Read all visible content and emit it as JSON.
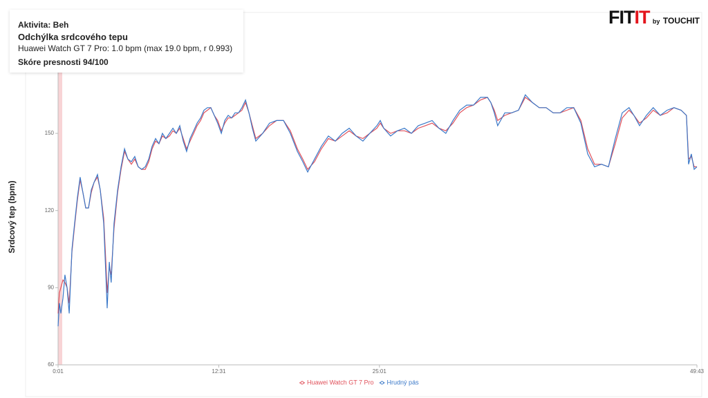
{
  "info": {
    "activity": "Aktivita: Beh",
    "heading": "Odchýlka srdcového tepu",
    "detail": "Huawei Watch GT 7 Pro: 1.0 bpm  (max 19.0 bpm, r 0.993)",
    "score": "Skóre presnosti 94/100"
  },
  "logo": {
    "brand_a": "FIT",
    "brand_b": "IT",
    "by": "by",
    "partner": "TOUCHIT"
  },
  "chart_data": {
    "type": "line",
    "ylabel": "Srdcový tep (bpm)",
    "xlim": [
      1,
      2983
    ],
    "xticks": [
      {
        "value": 1,
        "label": "0:01"
      },
      {
        "value": 751,
        "label": "12:31"
      },
      {
        "value": 1501,
        "label": "25:01"
      },
      {
        "value": 2983,
        "label": "49:43"
      }
    ],
    "ylim": [
      60,
      175
    ],
    "yticks": [
      60,
      90,
      120,
      150
    ],
    "x": [
      1,
      7,
      14,
      24,
      33,
      43,
      53,
      66,
      78,
      91,
      104,
      117,
      130,
      143,
      156,
      169,
      185,
      198,
      214,
      224,
      230,
      240,
      249,
      262,
      279,
      295,
      311,
      327,
      343,
      359,
      375,
      391,
      408,
      424,
      440,
      456,
      472,
      488,
      504,
      521,
      537,
      553,
      569,
      585,
      601,
      617,
      634,
      650,
      666,
      682,
      698,
      714,
      730,
      746,
      763,
      779,
      795,
      811,
      827,
      843,
      859,
      876,
      892,
      908,
      924,
      956,
      988,
      1021,
      1053,
      1085,
      1118,
      1143,
      1166,
      1198,
      1230,
      1263,
      1295,
      1327,
      1360,
      1392,
      1424,
      1456,
      1489,
      1505,
      1521,
      1553,
      1585,
      1618,
      1650,
      1682,
      1715,
      1747,
      1779,
      1811,
      1844,
      1876,
      1908,
      1940,
      1973,
      2005,
      2021,
      2037,
      2053,
      2086,
      2118,
      2150,
      2182,
      2215,
      2247,
      2279,
      2312,
      2344,
      2376,
      2408,
      2441,
      2473,
      2505,
      2537,
      2570,
      2602,
      2634,
      2666,
      2689,
      2715,
      2747,
      2779,
      2812,
      2844,
      2876,
      2909,
      2934,
      2944,
      2957,
      2970,
      2983
    ],
    "series": [
      {
        "name": "Huawei Watch GT 7 Pro",
        "color": "#e0505a",
        "values": [
          80,
          88,
          90,
          93,
          92,
          90,
          84,
          104,
          114,
          124,
          132,
          127,
          121,
          121,
          127,
          131,
          133,
          128,
          117,
          100,
          88,
          98,
          95,
          113,
          127,
          136,
          143,
          140,
          138,
          140,
          137,
          136,
          136,
          139,
          144,
          147,
          146,
          149,
          148,
          149,
          151,
          150,
          152,
          148,
          144,
          147,
          150,
          153,
          155,
          158,
          159,
          160,
          157,
          155,
          151,
          154,
          156,
          156,
          157,
          158,
          159,
          162,
          158,
          153,
          148,
          150,
          153,
          155,
          155,
          151,
          144,
          140,
          136,
          139,
          144,
          148,
          147,
          149,
          151,
          149,
          148,
          150,
          152,
          154,
          152,
          150,
          151,
          151,
          150,
          152,
          153,
          154,
          152,
          151,
          154,
          158,
          160,
          161,
          163,
          164,
          162,
          159,
          155,
          157,
          158,
          159,
          164,
          162,
          160,
          160,
          158,
          158,
          159,
          160,
          155,
          144,
          138,
          138,
          137,
          146,
          156,
          159,
          157,
          154,
          156,
          159,
          157,
          158,
          160,
          159,
          157,
          140,
          141,
          137,
          137
        ]
      },
      {
        "name": "Hrudný pás",
        "color": "#3a78c8",
        "values": [
          75,
          84,
          80,
          86,
          95,
          90,
          80,
          105,
          115,
          125,
          133,
          127,
          121,
          121,
          128,
          131,
          134,
          128,
          115,
          95,
          82,
          100,
          92,
          115,
          128,
          137,
          144,
          140,
          139,
          141,
          137,
          136,
          137,
          140,
          145,
          148,
          146,
          150,
          148,
          150,
          152,
          150,
          153,
          147,
          143,
          148,
          151,
          154,
          156,
          159,
          160,
          160,
          157,
          154,
          150,
          155,
          157,
          156,
          158,
          158,
          160,
          163,
          158,
          152,
          147,
          150,
          154,
          155,
          155,
          150,
          143,
          139,
          135,
          140,
          145,
          149,
          147,
          150,
          152,
          149,
          147,
          150,
          153,
          155,
          152,
          149,
          151,
          152,
          150,
          153,
          154,
          155,
          152,
          150,
          155,
          159,
          161,
          161,
          164,
          164,
          162,
          158,
          153,
          158,
          158,
          159,
          165,
          162,
          160,
          160,
          158,
          158,
          160,
          160,
          154,
          142,
          137,
          138,
          137,
          148,
          158,
          160,
          157,
          153,
          157,
          160,
          157,
          159,
          160,
          159,
          157,
          138,
          142,
          136,
          137
        ]
      }
    ]
  }
}
